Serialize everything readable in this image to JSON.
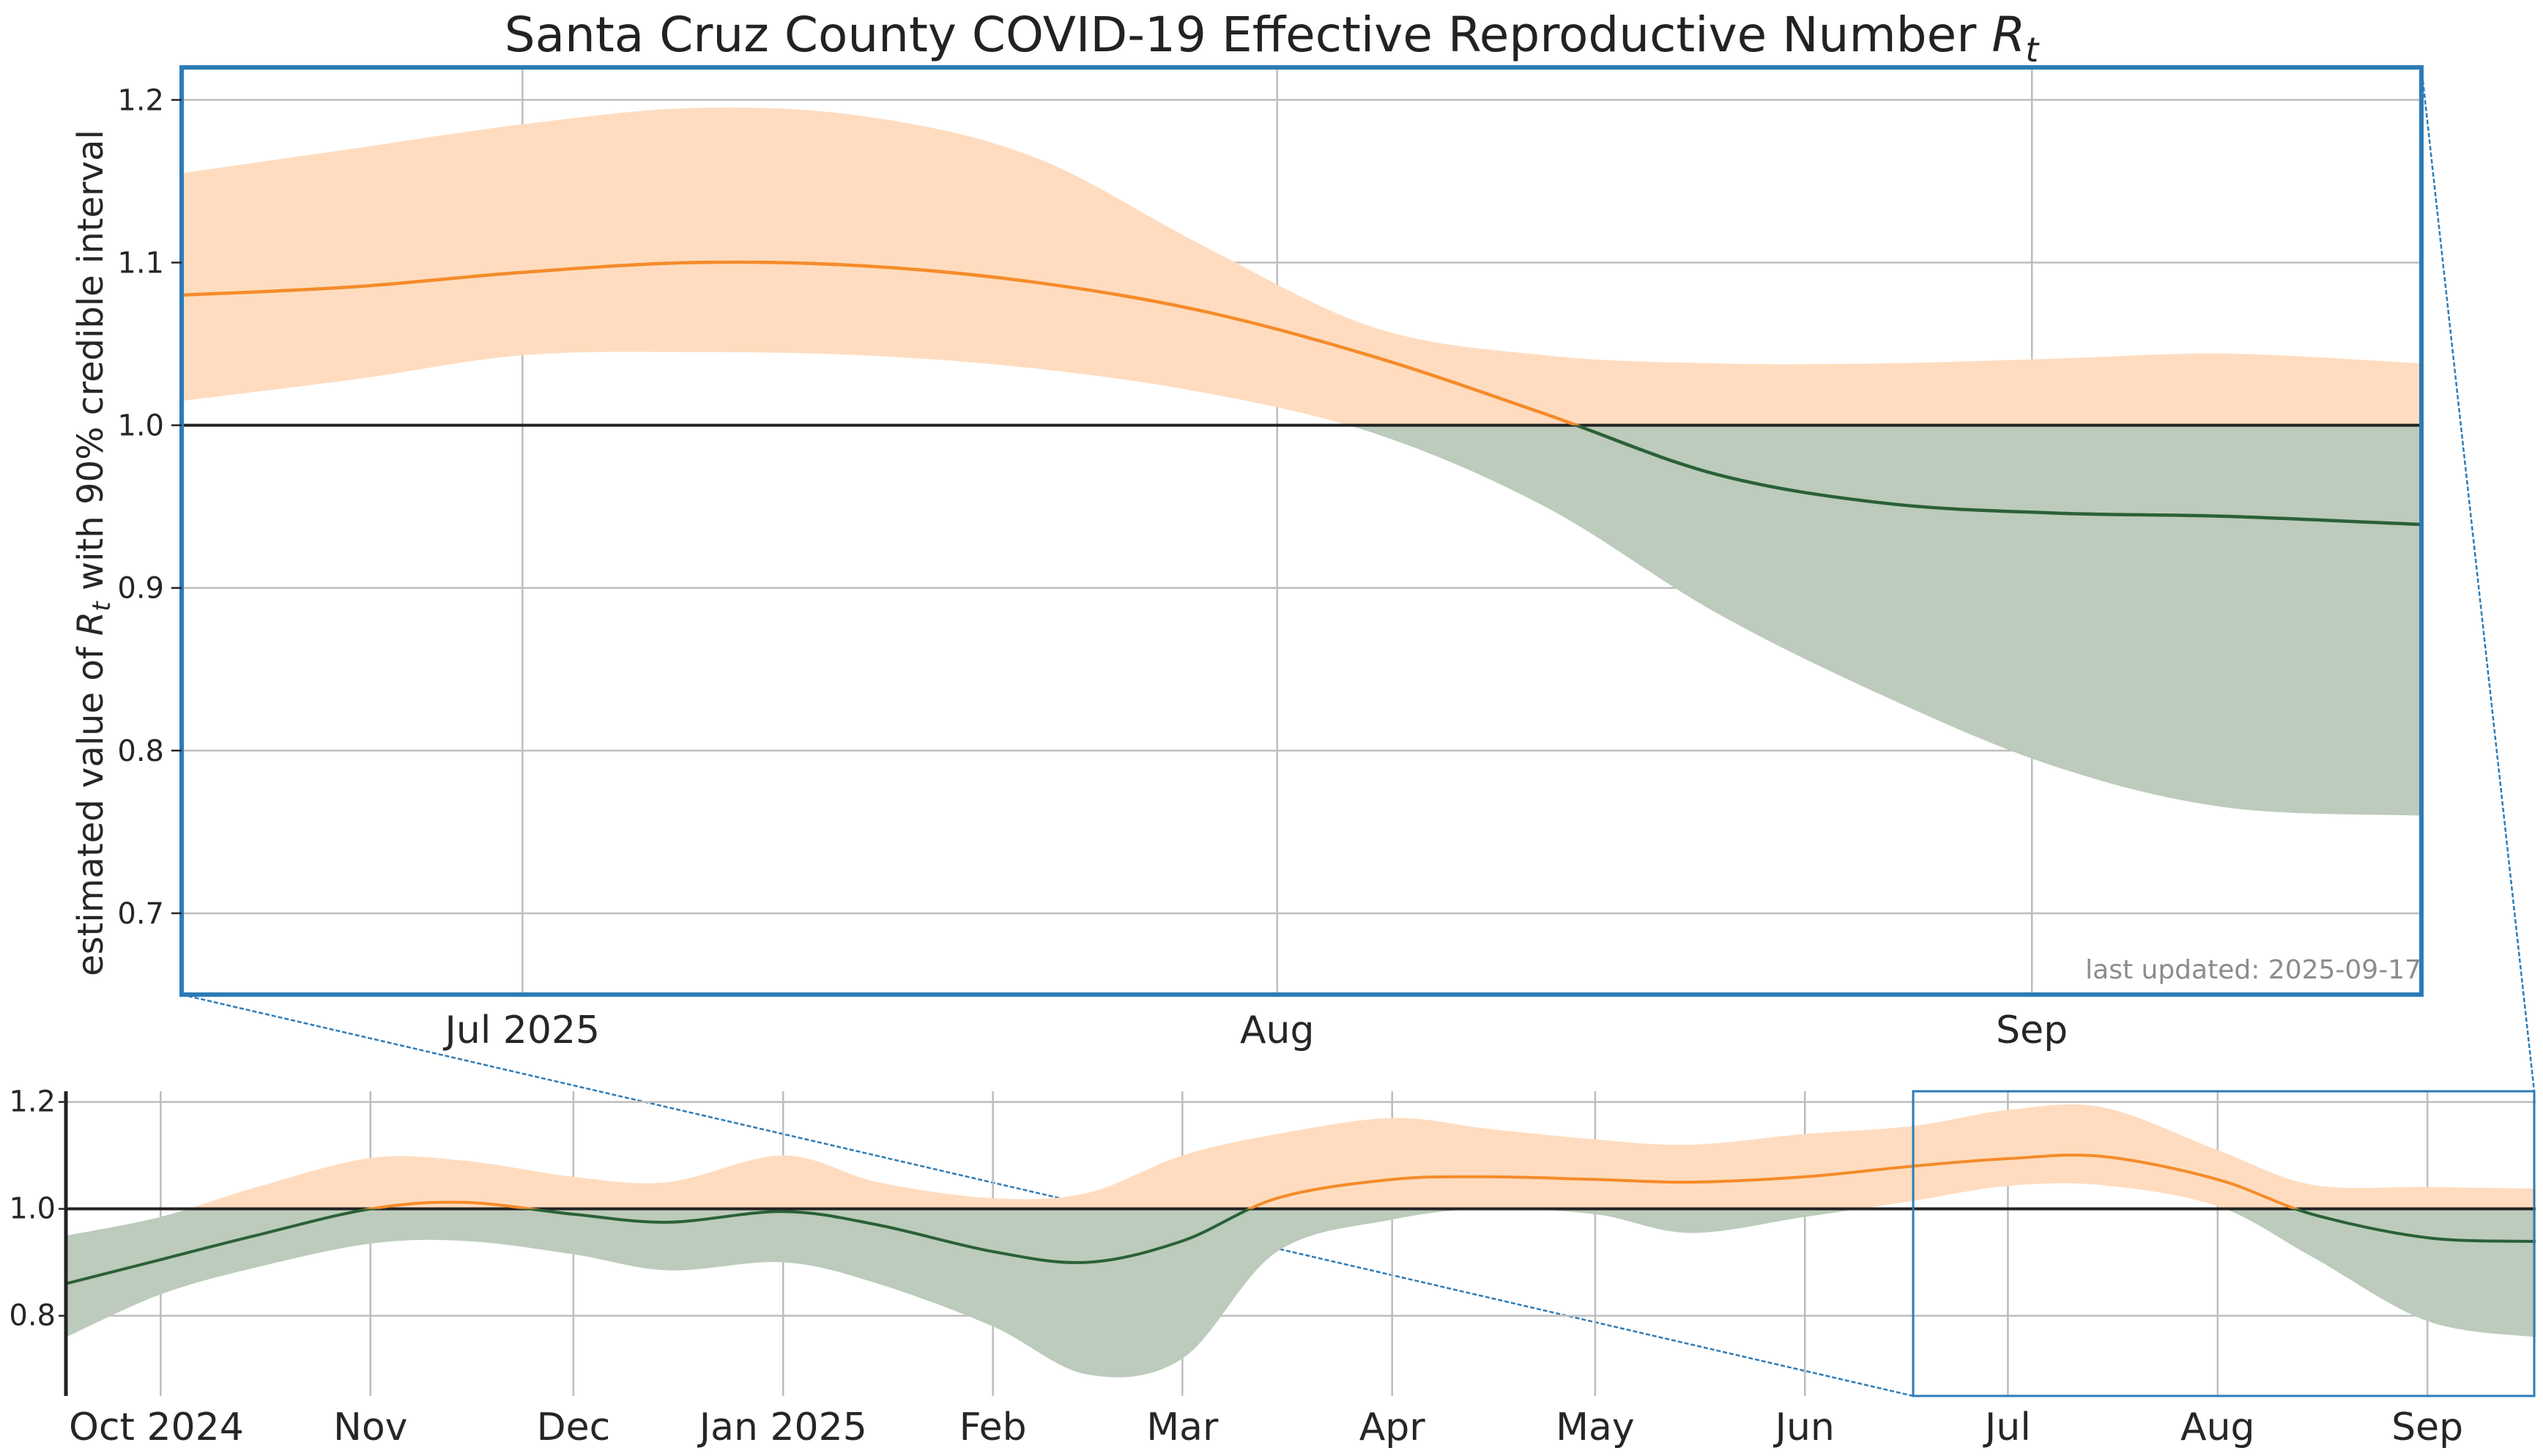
{
  "chart_data": [
    {
      "panel": "main",
      "type": "line",
      "title": "Santa Cruz County COVID-19 Effective Reproductive Number R_t",
      "title_text": "Santa Cruz County COVID-19 Effective Reproductive Number ",
      "title_symbol": "R",
      "title_subscript": "t",
      "ylabel_prefix": "estimated value of ",
      "ylabel_symbol": "R",
      "ylabel_subscript": "t",
      "ylabel_suffix": " with 90% credible interval",
      "note": "last updated: 2025-09-17",
      "x_range": [
        "2025-06-17",
        "2025-09-17"
      ],
      "ylim": [
        0.65,
        1.22
      ],
      "yticks": [
        "0.7",
        "0.8",
        "0.9",
        "1.0",
        "1.1",
        "1.2"
      ],
      "ytick_values": [
        0.7,
        0.8,
        0.9,
        1.0,
        1.1,
        1.2
      ],
      "xticks": [
        "Jul 2025",
        "Aug",
        "Sep"
      ],
      "xtick_dates": [
        "2025-07-01",
        "2025-08-01",
        "2025-09-01"
      ],
      "reference_line": 1.0,
      "grid": true,
      "colors": {
        "above": "#f58b2a",
        "above_band": "#ffdcbf",
        "below": "#2a6137",
        "below_band": "#bccbbb",
        "frame": "#2e7bb6",
        "ref": "#222222",
        "grid": "#bdbdbd"
      },
      "x": [
        "2025-06-17",
        "2025-06-24",
        "2025-07-01",
        "2025-07-08",
        "2025-07-15",
        "2025-07-22",
        "2025-07-29",
        "2025-08-05",
        "2025-08-12",
        "2025-08-19",
        "2025-08-26",
        "2025-09-02",
        "2025-09-09",
        "2025-09-17"
      ],
      "median": [
        1.08,
        1.085,
        1.094,
        1.1,
        1.098,
        1.088,
        1.07,
        1.042,
        1.007,
        0.97,
        0.952,
        0.946,
        0.944,
        0.939
      ],
      "lower": [
        1.015,
        1.028,
        1.043,
        1.045,
        1.043,
        1.035,
        1.02,
        0.995,
        0.95,
        0.885,
        0.833,
        0.79,
        0.765,
        0.76
      ],
      "upper": [
        1.155,
        1.17,
        1.185,
        1.195,
        1.19,
        1.165,
        1.11,
        1.06,
        1.043,
        1.038,
        1.038,
        1.041,
        1.044,
        1.038
      ]
    },
    {
      "panel": "overview",
      "type": "line",
      "x_range": [
        "2024-09-17",
        "2025-09-17"
      ],
      "ylim": [
        0.65,
        1.22
      ],
      "yticks": [
        "0.8",
        "1.0",
        "1.2"
      ],
      "ytick_values": [
        0.8,
        1.0,
        1.2
      ],
      "xticks": [
        "Oct 2024",
        "Nov",
        "Dec",
        "Jan 2025",
        "Feb",
        "Mar",
        "Apr",
        "May",
        "Jun",
        "Jul",
        "Aug",
        "Sep"
      ],
      "xtick_dates": [
        "2024-10-01",
        "2024-11-01",
        "2024-12-01",
        "2025-01-01",
        "2025-02-01",
        "2025-03-01",
        "2025-04-01",
        "2025-05-01",
        "2025-06-01",
        "2025-07-01",
        "2025-08-01",
        "2025-09-01"
      ],
      "reference_line": 1.0,
      "grid": true,
      "zoom_window": [
        "2025-06-17",
        "2025-09-17"
      ],
      "x": [
        "2024-09-17",
        "2024-10-01",
        "2024-10-15",
        "2024-11-01",
        "2024-11-15",
        "2024-12-01",
        "2024-12-15",
        "2025-01-01",
        "2025-01-15",
        "2025-02-01",
        "2025-02-15",
        "2025-03-01",
        "2025-03-15",
        "2025-04-01",
        "2025-04-15",
        "2025-05-01",
        "2025-05-15",
        "2025-06-01",
        "2025-06-17",
        "2025-07-01",
        "2025-07-15",
        "2025-08-01",
        "2025-08-15",
        "2025-09-01",
        "2025-09-17"
      ],
      "median": [
        0.86,
        0.905,
        0.95,
        1.0,
        1.012,
        0.99,
        0.975,
        0.995,
        0.97,
        0.92,
        0.9,
        0.94,
        1.02,
        1.055,
        1.06,
        1.055,
        1.05,
        1.06,
        1.08,
        1.094,
        1.098,
        1.055,
        0.99,
        0.946,
        0.939
      ],
      "lower": [
        0.76,
        0.84,
        0.89,
        0.935,
        0.94,
        0.915,
        0.885,
        0.9,
        0.86,
        0.78,
        0.69,
        0.72,
        0.92,
        0.98,
        1.0,
        0.99,
        0.955,
        0.985,
        1.015,
        1.043,
        1.044,
        1.005,
        0.91,
        0.79,
        0.76
      ],
      "upper": [
        0.95,
        0.985,
        1.04,
        1.095,
        1.09,
        1.06,
        1.05,
        1.1,
        1.05,
        1.02,
        1.03,
        1.1,
        1.14,
        1.17,
        1.15,
        1.13,
        1.12,
        1.14,
        1.155,
        1.185,
        1.19,
        1.11,
        1.045,
        1.041,
        1.038
      ]
    }
  ]
}
